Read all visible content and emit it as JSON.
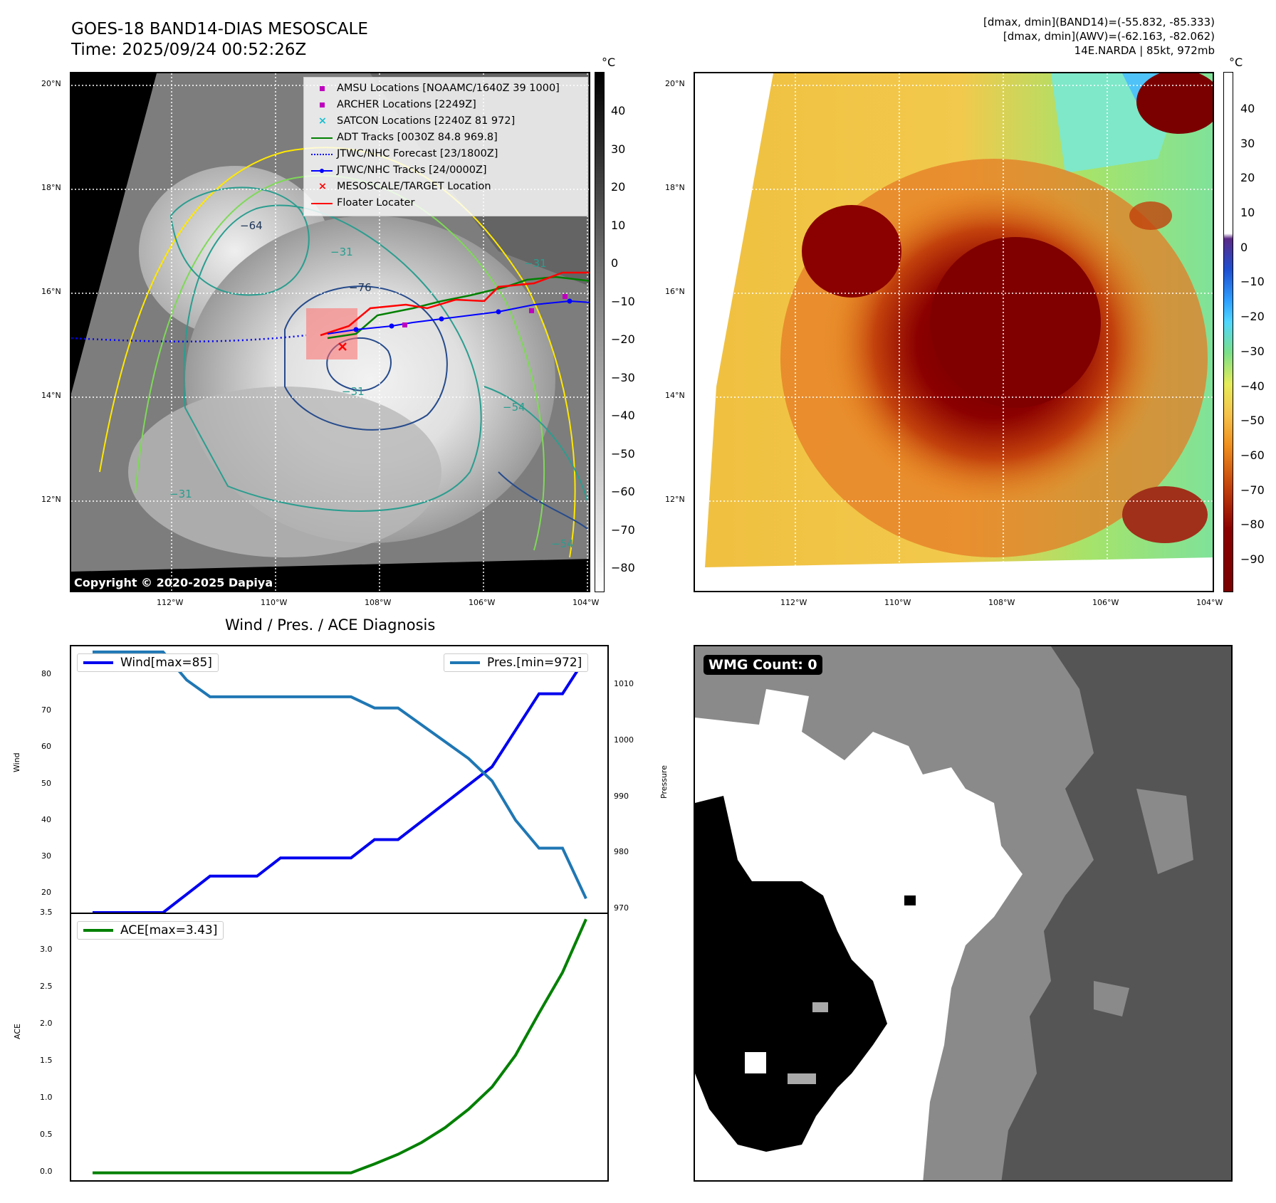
{
  "header": {
    "title_line1": "GOES-18 BAND14-DIAS MESOSCALE",
    "title_line2": "Time: 2025/09/24 00:52:26Z",
    "right_line1": "[dmax, dmin](BAND14)=(-55.832, -85.333)",
    "right_line2": "[dmax, dmin](AWV)=(-62.163, -82.062)",
    "right_line3": "14E.NARDA | 85kt, 972mb"
  },
  "ir_panel": {
    "lat_labels": [
      "20°N",
      "18°N",
      "16°N",
      "14°N",
      "12°N"
    ],
    "lon_labels": [
      "112°W",
      "110°W",
      "108°W",
      "106°W",
      "104°W"
    ],
    "colorbar_unit": "°C",
    "colorbar_ticks": [
      "40",
      "30",
      "20",
      "10",
      "0",
      "−10",
      "−20",
      "−30",
      "−40",
      "−50",
      "−60",
      "−70",
      "−80"
    ],
    "contour_labels": [
      "−64",
      "−76",
      "−31",
      "−31",
      "−54",
      "−31",
      "−54",
      "−31"
    ],
    "copyright": "Copyright © 2020-2025 Dapiya",
    "legend": [
      {
        "label": "AMSU Locations [NOAAMC/1640Z 39 1000]",
        "symbol": "square",
        "color": "#bf00bf"
      },
      {
        "label": "ARCHER Locations [2249Z]",
        "symbol": "square",
        "color": "#bf00bf"
      },
      {
        "label": "SATCON Locations [2240Z 81 972]",
        "symbol": "x",
        "color": "#17becf"
      },
      {
        "label": "ADT Tracks [0030Z 84.8 969.8]",
        "symbol": "line",
        "color": "#008000"
      },
      {
        "label": "JTWC/NHC Forecast [23/1800Z]",
        "symbol": "dotted",
        "color": "#0000ff"
      },
      {
        "label": "JTWC/NHC Tracks [24/0000Z]",
        "symbol": "line-dot",
        "color": "#0000ff"
      },
      {
        "label": "MESOSCALE/TARGET Location",
        "symbol": "x",
        "color": "#ff0000"
      },
      {
        "label": "Floater Locater",
        "symbol": "line",
        "color": "#ff0000"
      }
    ]
  },
  "awv_panel": {
    "lat_labels": [
      "20°N",
      "18°N",
      "16°N",
      "14°N",
      "12°N"
    ],
    "lon_labels": [
      "112°W",
      "110°W",
      "108°W",
      "106°W",
      "104°W"
    ],
    "colorbar_unit": "°C",
    "colorbar_ticks": [
      "40",
      "30",
      "20",
      "10",
      "0",
      "−10",
      "−20",
      "−30",
      "−40",
      "−50",
      "−60",
      "−70",
      "−80",
      "−90"
    ]
  },
  "wmg_panel": {
    "label": "WMG Count: 0"
  },
  "chart_data": [
    {
      "type": "line",
      "title": "Wind / Pres. / ACE Diagnosis",
      "ylabel": "Wind",
      "y2label": "Pressure",
      "ylim": [
        15,
        88
      ],
      "y2lim": [
        969.5,
        1017
      ],
      "yticks": [
        20,
        30,
        40,
        50,
        60,
        70,
        80
      ],
      "y2ticks": [
        970,
        980,
        990,
        1000,
        1010
      ],
      "series": [
        {
          "name": "Wind[max=85]",
          "color": "#0000ee",
          "values": [
            15,
            15,
            15,
            15,
            20,
            25,
            25,
            25,
            30,
            30,
            30,
            30,
            35,
            35,
            40,
            45,
            50,
            55,
            65,
            75,
            75,
            85
          ]
        },
        {
          "name": "Pres.[min=972]",
          "color": "#1f77b4",
          "values": [
            1016,
            1016,
            1016,
            1016,
            1011,
            1008,
            1008,
            1008,
            1008,
            1008,
            1008,
            1008,
            1006,
            1006,
            1003,
            1000,
            997,
            993,
            986,
            981,
            981,
            972
          ]
        }
      ]
    },
    {
      "type": "line",
      "ylabel": "ACE",
      "ylim": [
        -0.1,
        3.5
      ],
      "yticks": [
        "0.0",
        "0.5",
        "1.0",
        "1.5",
        "2.0",
        "2.5",
        "3.0",
        "3.5"
      ],
      "series": [
        {
          "name": "ACE[max=3.43]",
          "color": "#008000",
          "values": [
            0,
            0,
            0,
            0,
            0,
            0,
            0,
            0,
            0,
            0,
            0,
            0,
            0.12,
            0.25,
            0.41,
            0.61,
            0.86,
            1.16,
            1.59,
            2.16,
            2.71,
            3.43
          ]
        }
      ]
    }
  ]
}
